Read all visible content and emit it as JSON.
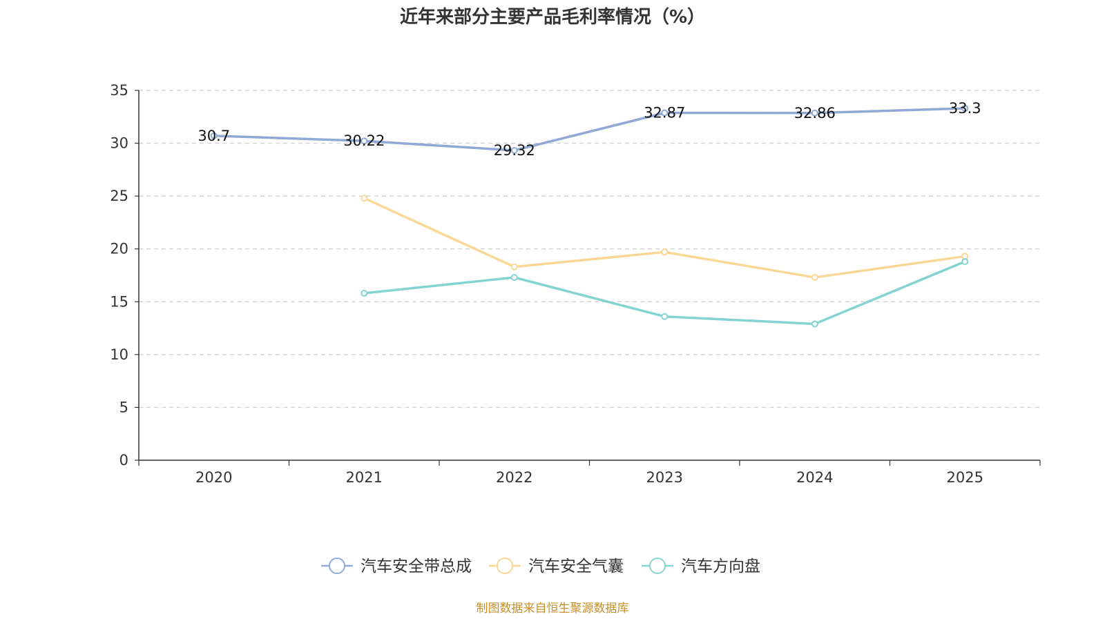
{
  "chart_data": {
    "type": "line",
    "title": "近年来部分主要产品毛利率情况（%）",
    "categories": [
      "2020",
      "2021",
      "2022",
      "2023",
      "2024",
      "2025"
    ],
    "ylim": [
      0,
      35
    ],
    "yticks": [
      0,
      5,
      10,
      15,
      20,
      25,
      30,
      35
    ],
    "grid": true,
    "legend_position": "bottom-center",
    "series": [
      {
        "name": "汽车安全带总成",
        "color": "#8fa9d6",
        "show_labels": true,
        "values": [
          30.7,
          30.22,
          29.32,
          32.87,
          32.86,
          33.3
        ],
        "labels": [
          "30.7",
          "30.22",
          "29.32",
          "32.87",
          "32.86",
          "33.3"
        ]
      },
      {
        "name": "汽车安全气囊",
        "color": "#fad795",
        "show_labels": false,
        "values": [
          null,
          24.8,
          18.3,
          19.7,
          17.3,
          19.3
        ]
      },
      {
        "name": "汽车方向盘",
        "color": "#84d3d3",
        "show_labels": false,
        "values": [
          null,
          15.8,
          17.3,
          13.6,
          12.9,
          18.8
        ]
      }
    ],
    "source": "制图数据来自恒生聚源数据库",
    "source_color": "#c8902a"
  }
}
